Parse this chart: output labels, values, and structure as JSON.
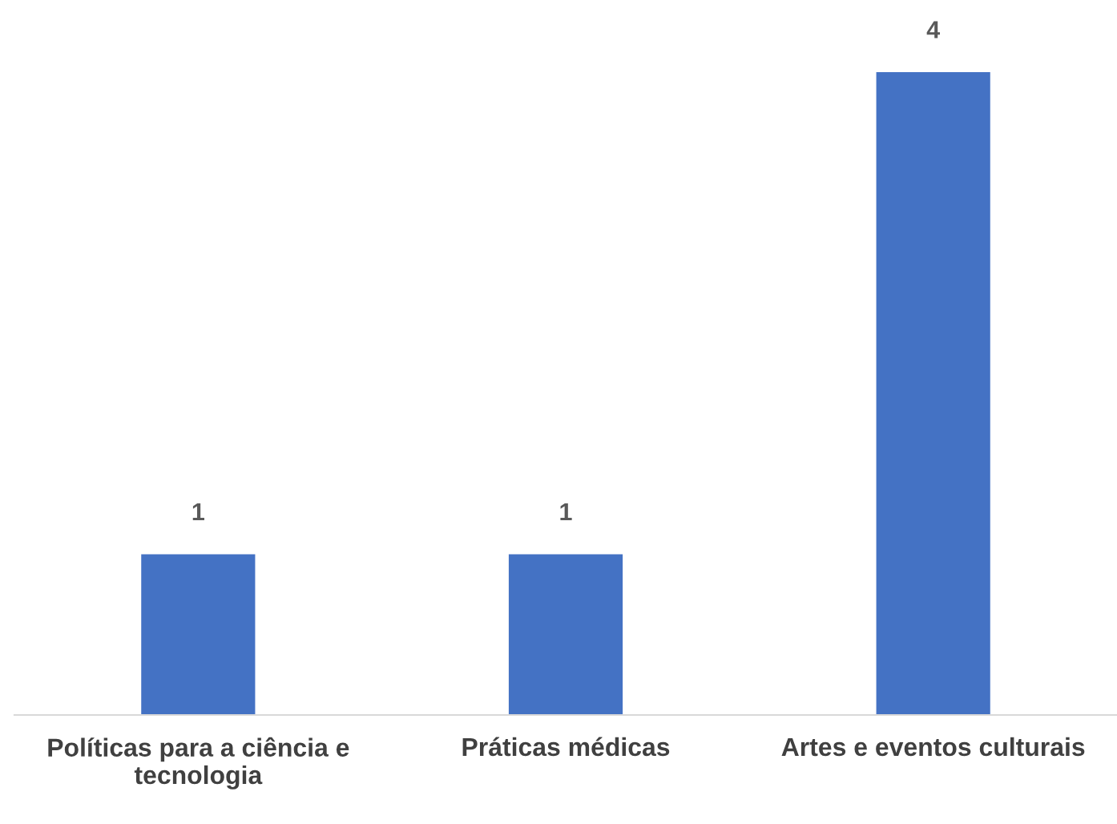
{
  "chart_data": {
    "type": "bar",
    "categories": [
      "Políticas para a ciência e\ntecnologia",
      "Práticas médicas",
      "Artes e eventos culturais"
    ],
    "values": [
      1,
      1,
      4
    ],
    "color": "#4472c4",
    "data_labels": true,
    "grid": false,
    "legend": false
  }
}
